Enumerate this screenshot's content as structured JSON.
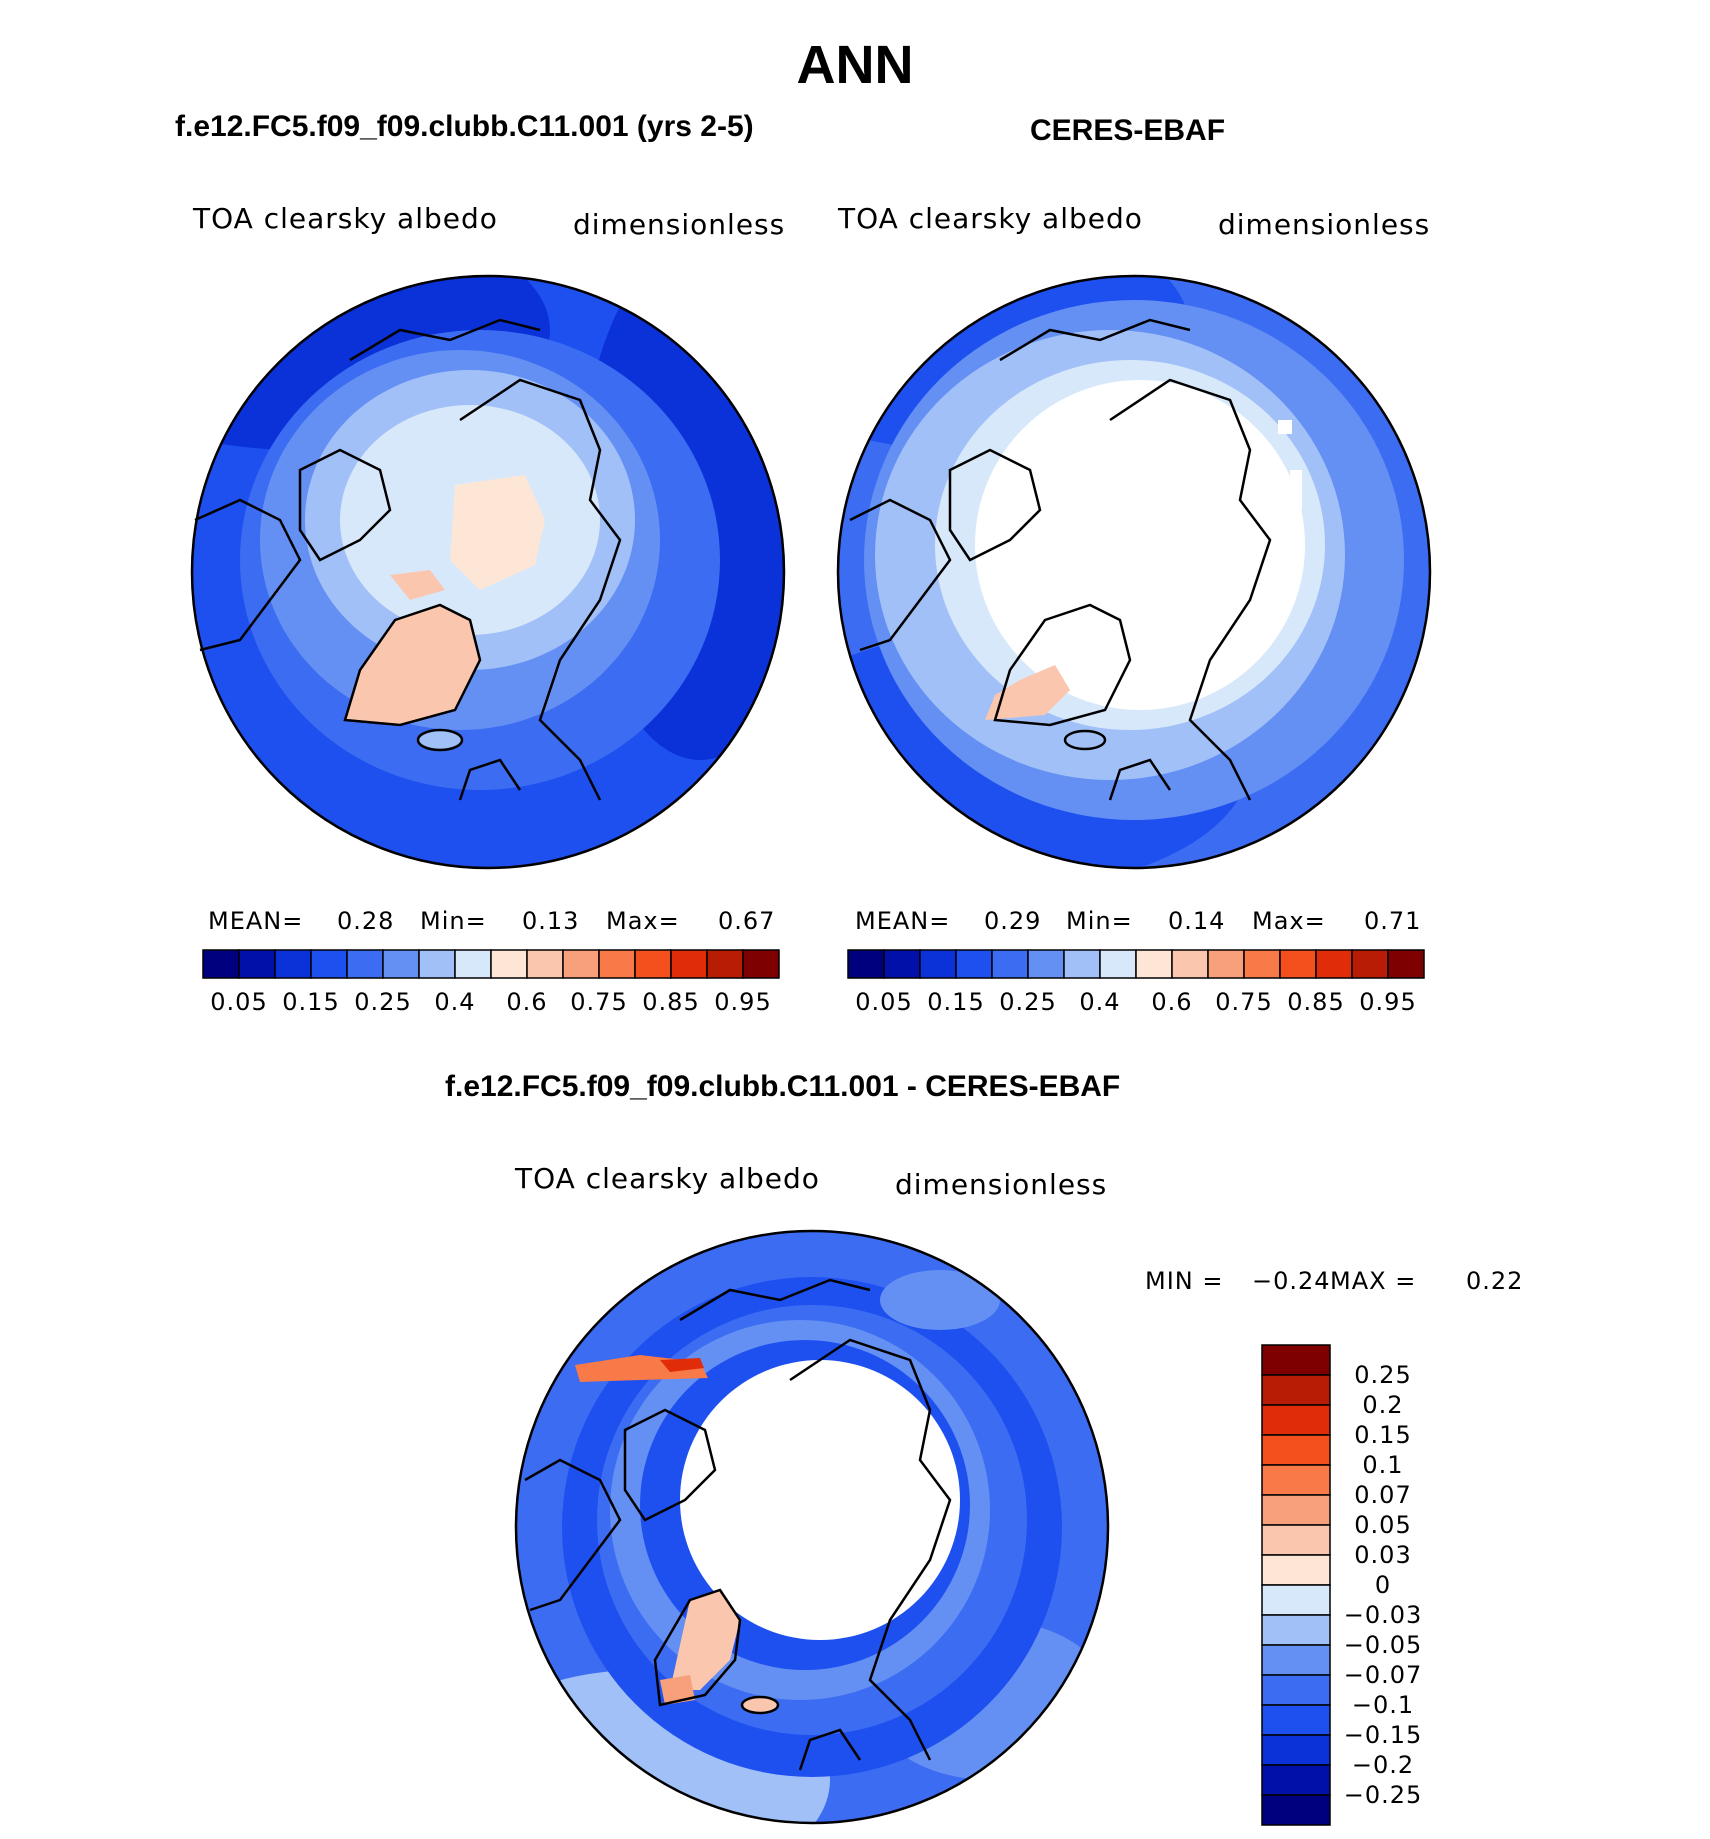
{
  "main_title": "ANN",
  "panels": [
    {
      "title": "f.e12.FC5.f09_f09.clubb.C11.001 (yrs 2-5)",
      "variable": "TOA clearsky albedo",
      "units": "dimensionless",
      "stats": {
        "mean_label": "MEAN=",
        "mean": "0.28",
        "min_label": "Min=",
        "min": "0.13",
        "max_label": "Max=",
        "max": "0.67"
      },
      "colorbar_ticks": [
        "0.05",
        "0.15",
        "0.25",
        "0.4",
        "0.6",
        "0.75",
        "0.85",
        "0.95"
      ]
    },
    {
      "title": "CERES-EBAF",
      "variable": "TOA clearsky albedo",
      "units": "dimensionless",
      "stats": {
        "mean_label": "MEAN=",
        "mean": "0.29",
        "min_label": "Min=",
        "min": "0.14",
        "max_label": "Max=",
        "max": "0.71"
      },
      "colorbar_ticks": [
        "0.05",
        "0.15",
        "0.25",
        "0.4",
        "0.6",
        "0.75",
        "0.85",
        "0.95"
      ]
    },
    {
      "title": "f.e12.FC5.f09_f09.clubb.C11.001 - CERES-EBAF",
      "variable": "TOA clearsky albedo",
      "units": "dimensionless",
      "stats": {
        "min_label": "MIN =",
        "min": "−0.24",
        "max_label": "MAX =",
        "max": "0.22"
      },
      "colorbar_ticks": [
        "0.25",
        "0.2",
        "0.15",
        "0.1",
        "0.07",
        "0.05",
        "0.03",
        "0",
        "−0.03",
        "−0.05",
        "−0.07",
        "−0.1",
        "−0.15",
        "−0.2",
        "−0.25"
      ]
    }
  ],
  "colors": {
    "field_scale": [
      "#00007f",
      "#0010a8",
      "#0a32d8",
      "#1e50f0",
      "#3c6cf2",
      "#6490f4",
      "#a2c0f8",
      "#d8e8fb",
      "#fde6d6",
      "#fac6ae",
      "#f8a07c",
      "#f77a48",
      "#f4501e",
      "#e02c08",
      "#b81c04",
      "#7f0000"
    ],
    "diff_scale": [
      "#7f0000",
      "#b81c04",
      "#e02c08",
      "#f4501e",
      "#f77a48",
      "#f8a07c",
      "#fac6ae",
      "#fde6d6",
      "#d8e8fb",
      "#a2c0f8",
      "#6490f4",
      "#3c6cf2",
      "#1e50f0",
      "#0a32d8",
      "#0010a8",
      "#00007f"
    ]
  }
}
